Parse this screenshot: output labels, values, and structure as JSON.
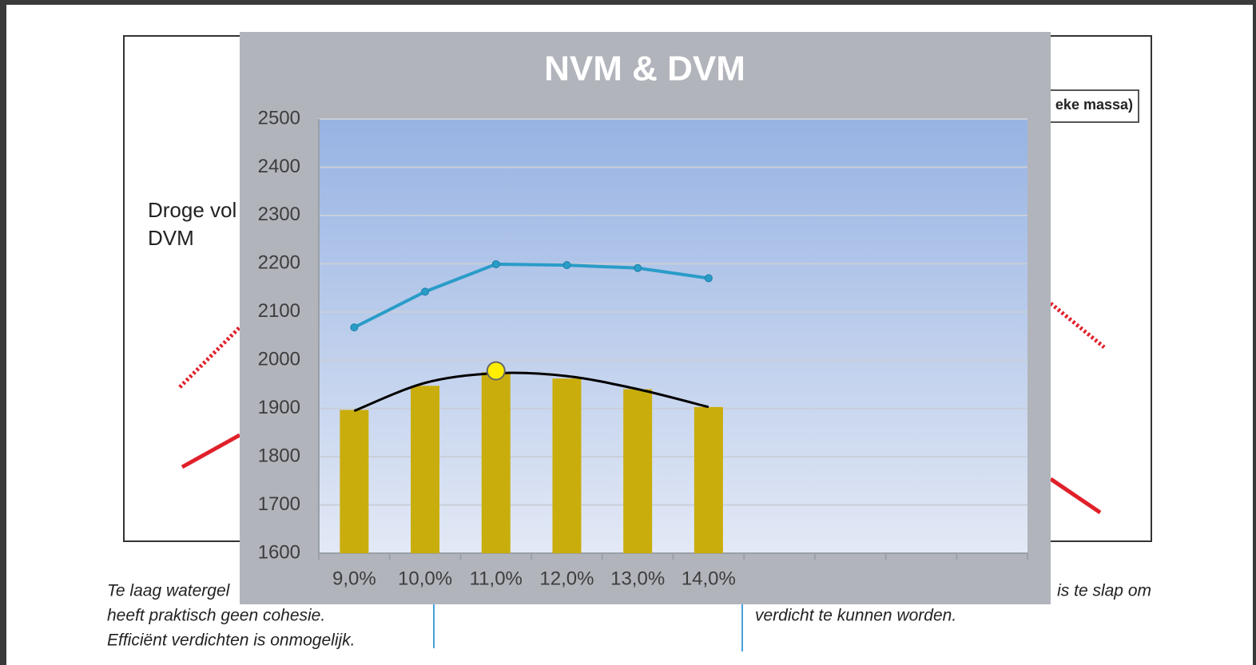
{
  "background": {
    "legend_fragment": "eke massa)",
    "left_label": [
      "Droge vol",
      "DVM"
    ],
    "left_caption": [
      "Te laag watergel",
      "heeft praktisch geen cohesie.",
      "Efficiënt verdichten is onmogelijk."
    ],
    "right_caption": [
      "is te slap om",
      "verdicht te kunnen worden."
    ]
  },
  "chart_data": {
    "type": "bar",
    "title": "NVM & DVM",
    "categories": [
      "9,0%",
      "10,0%",
      "11,0%",
      "12,0%",
      "13,0%",
      "14,0%",
      null,
      null,
      null,
      null
    ],
    "series": [
      {
        "type": "bar",
        "color": "#c9ad0c",
        "values": [
          1897,
          1947,
          1975,
          1962,
          1940,
          1903,
          null,
          null,
          null,
          null
        ]
      },
      {
        "type": "line",
        "color": "#2a9cc8",
        "values": [
          2068,
          2142,
          2199,
          2197,
          2191,
          2170,
          null,
          null,
          null,
          null
        ]
      },
      {
        "type": "trend",
        "color": "#000000",
        "values": [
          1895,
          1953,
          1973,
          1967,
          1940,
          1903,
          null,
          null,
          null,
          null
        ]
      },
      {
        "type": "marker",
        "color": "#ffee00",
        "values": [
          null,
          null,
          1978,
          null,
          null,
          null,
          null,
          null,
          null,
          null
        ]
      }
    ],
    "ylim": [
      1600,
      2500
    ],
    "yticks": [
      1600,
      1700,
      1800,
      1900,
      2000,
      2100,
      2200,
      2300,
      2400,
      2500
    ],
    "grid": true
  }
}
